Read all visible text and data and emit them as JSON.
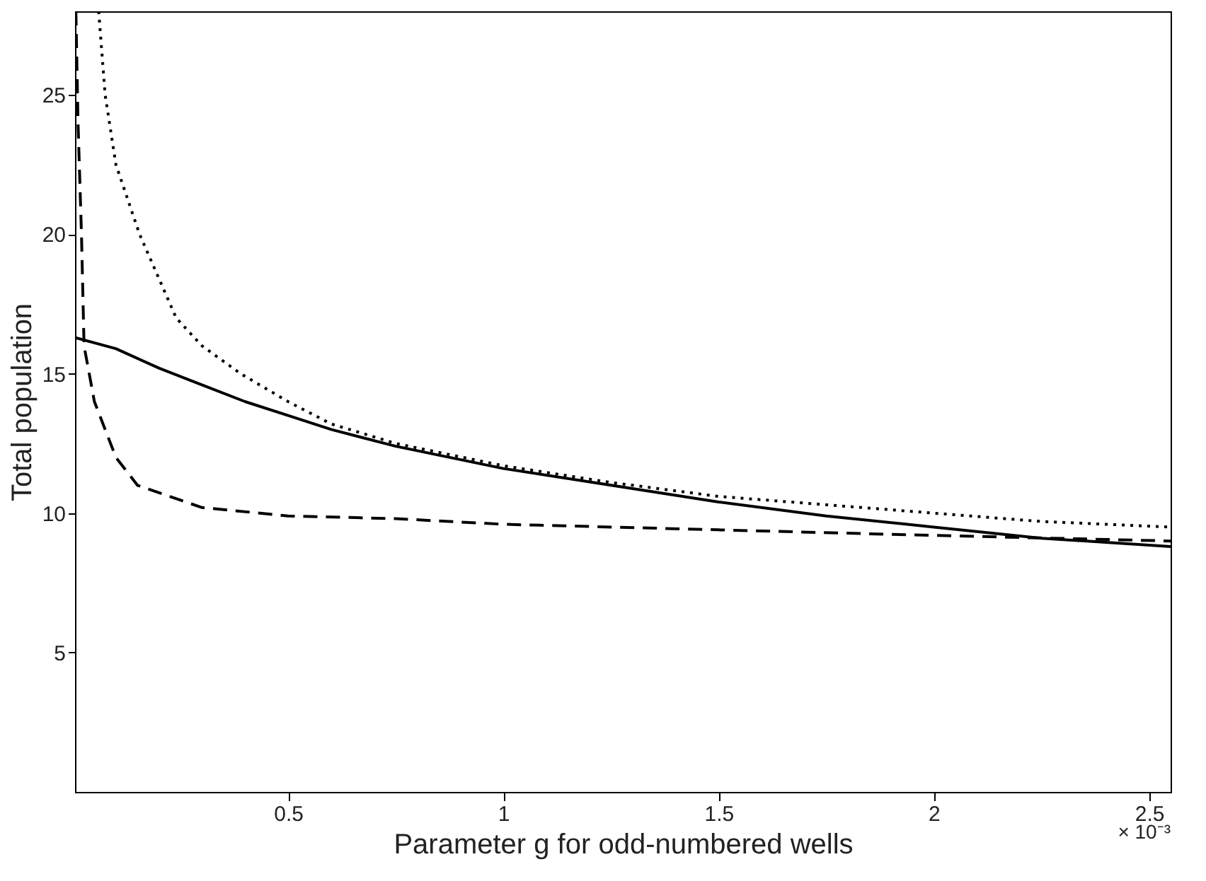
{
  "chart_data": {
    "type": "line",
    "xlabel": "Parameter g for odd-numbered wells",
    "ylabel": "Total population",
    "annotations": [
      "× 10⁻³"
    ],
    "xlim": [
      0.005,
      2.55
    ],
    "xticks": [
      0.5,
      1,
      1.5,
      2,
      2.5
    ],
    "ylim": [
      0,
      28
    ],
    "yticks": [
      5,
      10,
      15,
      20,
      25
    ],
    "grid": false,
    "series": [
      {
        "color": "#000000",
        "line_style": "solid",
        "x": [
          0.005,
          0.1,
          0.2,
          0.3,
          0.4,
          0.5,
          0.6,
          0.75,
          1.0,
          1.25,
          1.5,
          1.75,
          2.0,
          2.25,
          2.55
        ],
        "values": [
          16.3,
          15.9,
          15.2,
          14.6,
          14.0,
          13.5,
          13.0,
          12.4,
          11.6,
          11.0,
          10.4,
          9.9,
          9.5,
          9.1,
          8.8
        ]
      },
      {
        "color": "#000000",
        "line_style": "dotted",
        "x": [
          0.06,
          0.075,
          0.1,
          0.155,
          0.24,
          0.3,
          0.39,
          0.5,
          0.6,
          0.75,
          1.0,
          1.25,
          1.5,
          1.75,
          2.0,
          2.25,
          2.55
        ],
        "values": [
          28,
          25,
          22.5,
          20,
          17,
          16,
          15,
          14,
          13.2,
          12.5,
          11.7,
          11.1,
          10.6,
          10.3,
          10.0,
          9.7,
          9.5
        ]
      },
      {
        "color": "#000000",
        "line_style": "dashed",
        "x": [
          0.007,
          0.012,
          0.02,
          0.026,
          0.05,
          0.1,
          0.15,
          0.3,
          0.5,
          0.75,
          1.0,
          1.5,
          2.0,
          2.55
        ],
        "values": [
          28,
          24,
          20,
          16,
          14,
          12,
          11,
          10.2,
          9.9,
          9.8,
          9.6,
          9.4,
          9.2,
          9.0
        ]
      }
    ]
  }
}
